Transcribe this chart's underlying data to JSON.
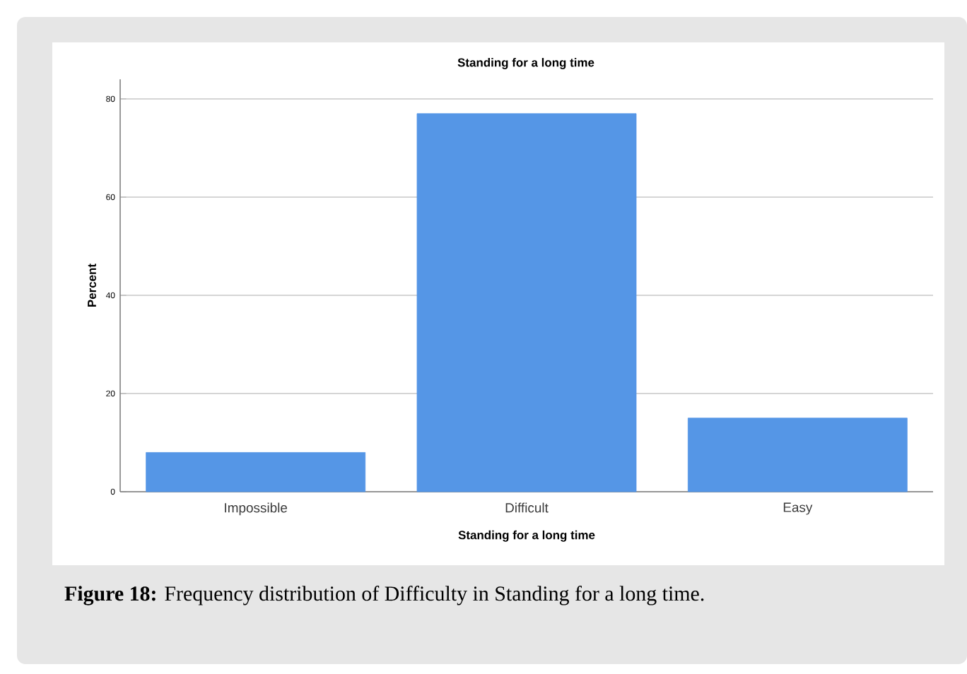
{
  "chart_data": {
    "type": "bar",
    "title": "Standing for a long time",
    "xlabel": "Standing for a long time",
    "ylabel": "Percent",
    "categories": [
      "Impossible",
      "Difficult",
      "Easy"
    ],
    "values": [
      8,
      77,
      15
    ],
    "color": "#5596e6",
    "ylim": [
      0,
      84
    ],
    "yticks": [
      0,
      20,
      40,
      60,
      80
    ],
    "grid": "y",
    "annotations": [
      "**Figure 18:** Frequency distribution of Difficulty in Standing for a long time."
    ]
  }
}
